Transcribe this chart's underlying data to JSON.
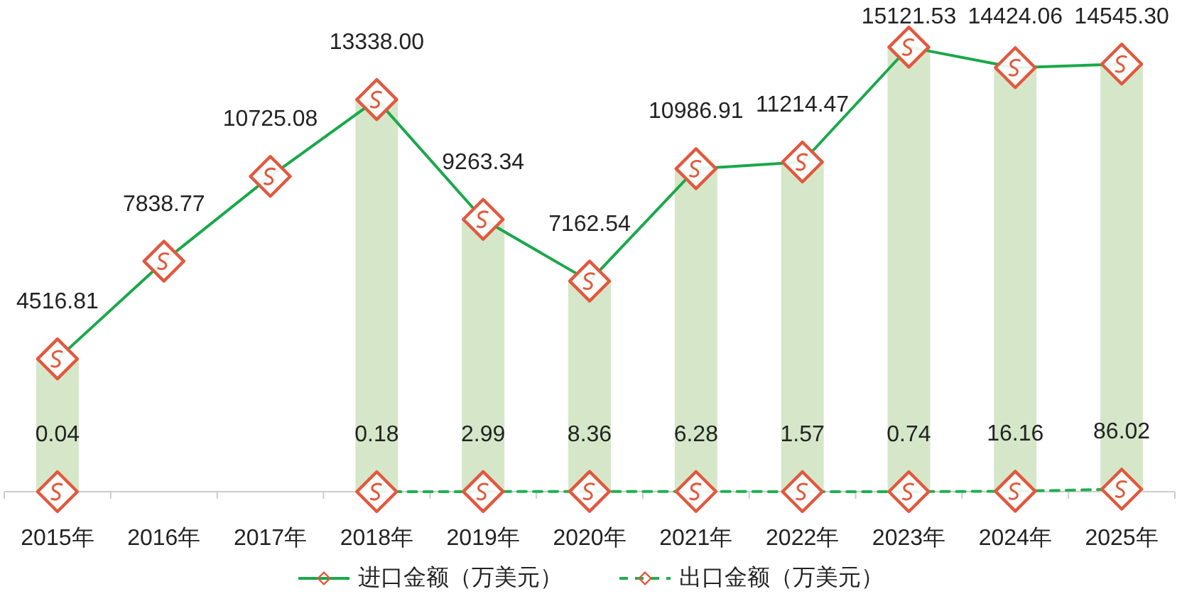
{
  "chart_data": {
    "type": "line",
    "categories": [
      "2015年",
      "2016年",
      "2017年",
      "2018年",
      "2019年",
      "2020年",
      "2021年",
      "2022年",
      "2023年",
      "2024年",
      "2025年"
    ],
    "series": [
      {
        "type": "bar",
        "color": "#d5e7c8",
        "values": [
          4516.81,
          null,
          null,
          13338.0,
          9263.34,
          7162.54,
          10986.91,
          11214.47,
          15121.53,
          14424.06,
          14545.3
        ]
      },
      {
        "name": "进口金额（万美元）",
        "color": "#1aa84b",
        "line_style": "solid",
        "colors": [
          "#e2583e",
          "#e2583e",
          "#e2583e",
          "#e2583e",
          "#e2583e",
          "#e2583e",
          "#e2583e",
          "#e2583e",
          "#e2583e",
          "#e2583e",
          "#e2583e"
        ],
        "values": [
          4516.81,
          7838.77,
          10725.08,
          13338.0,
          9263.34,
          7162.54,
          10986.91,
          11214.47,
          15121.53,
          14424.06,
          14545.3
        ],
        "value_labels": [
          "4516.81",
          "7838.77",
          "10725.08",
          "13338.00",
          "9263.34",
          "7162.54",
          "10986.91",
          "11214.47",
          "15121.53",
          "14424.06",
          "14545.30"
        ]
      },
      {
        "name": "出口金额（万美元）",
        "color": "#1fb050",
        "line_style": "dashed",
        "colors": [
          "#e2583e",
          null,
          null,
          "#e2583e",
          "#e2583e",
          "#e2583e",
          "#e2583e",
          "#e2583e",
          "#e2583e",
          "#e2583e",
          "#e2583e"
        ],
        "values": [
          0.04,
          null,
          null,
          0.18,
          2.99,
          8.36,
          6.28,
          1.57,
          0.74,
          16.16,
          86.02
        ],
        "value_labels": [
          "0.04",
          null,
          null,
          "0.18",
          "2.99",
          "8.36",
          "6.28",
          "1.57",
          "0.74",
          "16.16",
          "86.02"
        ]
      }
    ],
    "marker": "diamond",
    "legend": "bottom",
    "tick_labels": "x"
  }
}
